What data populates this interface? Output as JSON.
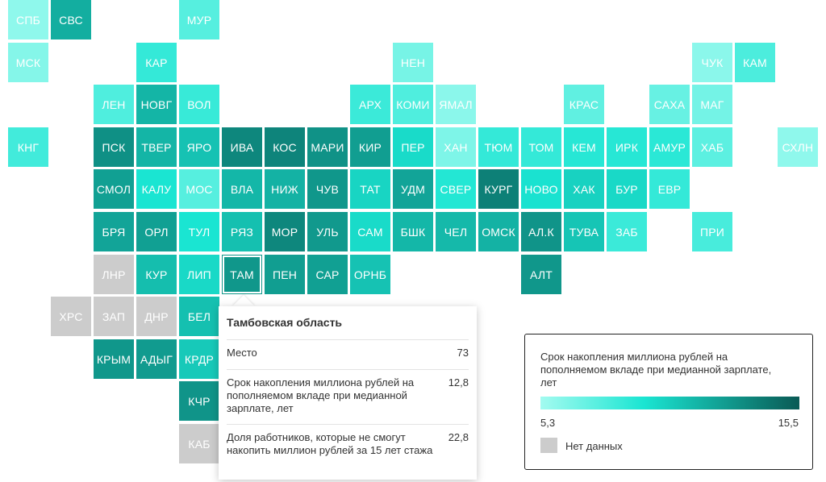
{
  "map": {
    "nodata_color": "#cccccc",
    "tiles": [
      {
        "label": "СПБ",
        "col": 0,
        "row": 0,
        "value": 5.9
      },
      {
        "label": "СВС",
        "col": 1,
        "row": 0,
        "value": 11.8
      },
      {
        "label": "МУР",
        "col": 4,
        "row": 0,
        "value": 7.6
      },
      {
        "label": "МСК",
        "col": 0,
        "row": 1,
        "value": 6.2
      },
      {
        "label": "КАР",
        "col": 3,
        "row": 1,
        "value": 8.6
      },
      {
        "label": "НЕН",
        "col": 9,
        "row": 1,
        "value": 6.6
      },
      {
        "label": "ЧУК",
        "col": 16,
        "row": 1,
        "value": 6.0
      },
      {
        "label": "КАМ",
        "col": 17,
        "row": 1,
        "value": 7.9
      },
      {
        "label": "ЛЕН",
        "col": 2,
        "row": 2,
        "value": 7.8
      },
      {
        "label": "НОВГ",
        "col": 3,
        "row": 2,
        "value": 11.5
      },
      {
        "label": "ВОЛ",
        "col": 4,
        "row": 2,
        "value": 8.5
      },
      {
        "label": "АРХ",
        "col": 8,
        "row": 2,
        "value": 8.4
      },
      {
        "label": "КОМИ",
        "col": 9,
        "row": 2,
        "value": 7.8
      },
      {
        "label": "ЯМАЛ",
        "col": 10,
        "row": 2,
        "value": 6.0
      },
      {
        "label": "КРАС",
        "col": 13,
        "row": 2,
        "value": 7.3
      },
      {
        "label": "САХА",
        "col": 15,
        "row": 2,
        "value": 7.1
      },
      {
        "label": "МАГ",
        "col": 16,
        "row": 2,
        "value": 6.7
      },
      {
        "label": "КНГ",
        "col": 0,
        "row": 3,
        "value": 8.2
      },
      {
        "label": "ПСК",
        "col": 2,
        "row": 3,
        "value": 13.1
      },
      {
        "label": "ТВЕР",
        "col": 3,
        "row": 3,
        "value": 11.5
      },
      {
        "label": "ЯРО",
        "col": 4,
        "row": 3,
        "value": 10.9
      },
      {
        "label": "ИВА",
        "col": 5,
        "row": 3,
        "value": 13.5
      },
      {
        "label": "КОС",
        "col": 6,
        "row": 3,
        "value": 13.6
      },
      {
        "label": "МАРИ",
        "col": 7,
        "row": 3,
        "value": 13.0
      },
      {
        "label": "КИР",
        "col": 8,
        "row": 3,
        "value": 12.5
      },
      {
        "label": "ПЕР",
        "col": 9,
        "row": 3,
        "value": 9.8
      },
      {
        "label": "ХАН",
        "col": 10,
        "row": 3,
        "value": 6.4
      },
      {
        "label": "ТЮМ",
        "col": 11,
        "row": 3,
        "value": 8.6
      },
      {
        "label": "ТОМ",
        "col": 12,
        "row": 3,
        "value": 8.6
      },
      {
        "label": "КЕМ",
        "col": 13,
        "row": 3,
        "value": 9.0
      },
      {
        "label": "ИРК",
        "col": 14,
        "row": 3,
        "value": 9.0
      },
      {
        "label": "АМУР",
        "col": 15,
        "row": 3,
        "value": 8.9
      },
      {
        "label": "ХАБ",
        "col": 16,
        "row": 3,
        "value": 7.4
      },
      {
        "label": "СХЛН",
        "col": 18,
        "row": 3,
        "value": 5.9
      },
      {
        "label": "СМОЛ",
        "col": 2,
        "row": 4,
        "value": 12.4
      },
      {
        "label": "КАЛУ",
        "col": 3,
        "row": 4,
        "value": 9.4
      },
      {
        "label": "МОС",
        "col": 4,
        "row": 4,
        "value": 7.6
      },
      {
        "label": "ВЛА",
        "col": 5,
        "row": 4,
        "value": 11.4
      },
      {
        "label": "НИЖ",
        "col": 6,
        "row": 4,
        "value": 11.6
      },
      {
        "label": "ЧУВ",
        "col": 7,
        "row": 4,
        "value": 12.8
      },
      {
        "label": "ТАТ",
        "col": 8,
        "row": 4,
        "value": 10.1
      },
      {
        "label": "УДМ",
        "col": 9,
        "row": 4,
        "value": 12.2
      },
      {
        "label": "СВЕР",
        "col": 10,
        "row": 4,
        "value": 9.1
      },
      {
        "label": "КУРГ",
        "col": 11,
        "row": 4,
        "value": 13.8
      },
      {
        "label": "НОВО",
        "col": 12,
        "row": 4,
        "value": 9.5
      },
      {
        "label": "ХАК",
        "col": 13,
        "row": 4,
        "value": 10.2
      },
      {
        "label": "БУР",
        "col": 14,
        "row": 4,
        "value": 9.9
      },
      {
        "label": "ЕВР",
        "col": 15,
        "row": 4,
        "value": 8.6
      },
      {
        "label": "БРЯ",
        "col": 2,
        "row": 5,
        "value": 12.2
      },
      {
        "label": "ОРЛ",
        "col": 3,
        "row": 5,
        "value": 12.4
      },
      {
        "label": "ТУЛ",
        "col": 4,
        "row": 5,
        "value": 9.4
      },
      {
        "label": "РЯЗ",
        "col": 5,
        "row": 5,
        "value": 11.0
      },
      {
        "label": "МОР",
        "col": 6,
        "row": 5,
        "value": 13.5
      },
      {
        "label": "УЛЬ",
        "col": 7,
        "row": 5,
        "value": 12.7
      },
      {
        "label": "САМ",
        "col": 8,
        "row": 5,
        "value": 9.8
      },
      {
        "label": "БШК",
        "col": 9,
        "row": 5,
        "value": 11.4
      },
      {
        "label": "ЧЕЛ",
        "col": 10,
        "row": 5,
        "value": 11.3
      },
      {
        "label": "ОМСК",
        "col": 11,
        "row": 5,
        "value": 11.6
      },
      {
        "label": "АЛ.К",
        "col": 12,
        "row": 5,
        "value": 12.9
      },
      {
        "label": "ТУВА",
        "col": 13,
        "row": 5,
        "value": 10.8
      },
      {
        "label": "ЗАБ",
        "col": 14,
        "row": 5,
        "value": 8.4
      },
      {
        "label": "ПРИ",
        "col": 16,
        "row": 5,
        "value": 8.0
      },
      {
        "label": "ЛНР",
        "col": 2,
        "row": 6,
        "value": null
      },
      {
        "label": "КУР",
        "col": 3,
        "row": 6,
        "value": 11.1
      },
      {
        "label": "ЛИП",
        "col": 4,
        "row": 6,
        "value": 9.9
      },
      {
        "label": "ТАМ",
        "col": 5,
        "row": 6,
        "value": 12.8,
        "selected": true
      },
      {
        "label": "ПЕН",
        "col": 6,
        "row": 6,
        "value": 12.5
      },
      {
        "label": "САР",
        "col": 7,
        "row": 6,
        "value": 12.4
      },
      {
        "label": "ОРНБ",
        "col": 8,
        "row": 6,
        "value": 10.9
      },
      {
        "label": "АЛТ",
        "col": 12,
        "row": 6,
        "value": 12.8
      },
      {
        "label": "ХРС",
        "col": 1,
        "row": 7,
        "value": null
      },
      {
        "label": "ЗАП",
        "col": 2,
        "row": 7,
        "value": null
      },
      {
        "label": "ДНР",
        "col": 3,
        "row": 7,
        "value": null
      },
      {
        "label": "БЕЛ",
        "col": 4,
        "row": 7,
        "value": 11.0
      },
      {
        "label": "КРЫМ",
        "col": 2,
        "row": 8,
        "value": 12.8
      },
      {
        "label": "АДЫГ",
        "col": 3,
        "row": 8,
        "value": 12.6
      },
      {
        "label": "КРДР",
        "col": 4,
        "row": 8,
        "value": 10.6
      },
      {
        "label": "КЧР",
        "col": 4,
        "row": 9,
        "value": 12.9
      },
      {
        "label": "КАБ",
        "col": 4,
        "row": 10,
        "value": null
      }
    ]
  },
  "tooltip": {
    "title": "Тамбовская область",
    "rows": [
      {
        "label": "Место",
        "value": "73"
      },
      {
        "label": "Срок накопления миллиона рублей на пополняемом вкладе при медианной зарплате, лет",
        "value": "12,8"
      },
      {
        "label": "Доля работников, которые не смогут накопить миллион рублей за 15 лет стажа",
        "value": "22,8"
      }
    ]
  },
  "legend": {
    "title": "Срок накопления миллиона рублей на пополняемом вкладе при медианной зарплате, лет",
    "min_label": "5,3",
    "max_label": "15,5",
    "min": 5.3,
    "max": 15.5,
    "nodata_label": "Нет данных",
    "colors": [
      "#a3fbf0",
      "#1ae5d2",
      "#0d7c73",
      "#0a5a55"
    ]
  }
}
